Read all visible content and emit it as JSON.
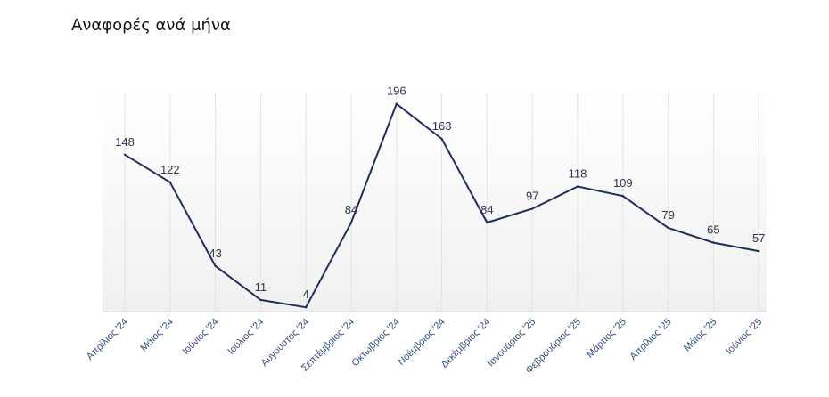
{
  "chart_data": {
    "type": "line",
    "title": "Αναφορές ανά μήνα",
    "xlabel": "",
    "ylabel": "",
    "categories": [
      "Απρίλιος '24",
      "Μάιος '24",
      "Ιούνιος '24",
      "Ιούλιος '24",
      "Αύγουστος '24",
      "Σεπτέμβριος '24",
      "Οκτώβριος '24",
      "Νοέμβριος '24",
      "Δεκέμβριος '24",
      "Ιανουάριος '25",
      "Φεβρουάριος '25",
      "Μάρτιος '25",
      "Απρίλιος '25",
      "Μάιος '25",
      "Ιούνιος '25"
    ],
    "series": [
      {
        "values": [
          148,
          122,
          43,
          11,
          4,
          84,
          196,
          163,
          84,
          97,
          118,
          109,
          79,
          65,
          57
        ]
      }
    ],
    "ylim": [
      0,
      210
    ],
    "grid": "vertical",
    "legend": "none",
    "colors": {
      "line": "#1f2d5a",
      "grid": "#e3e3e3",
      "axis": "#d9d9d9",
      "tick": "#2f4f7a",
      "label": "#2c3550"
    }
  }
}
